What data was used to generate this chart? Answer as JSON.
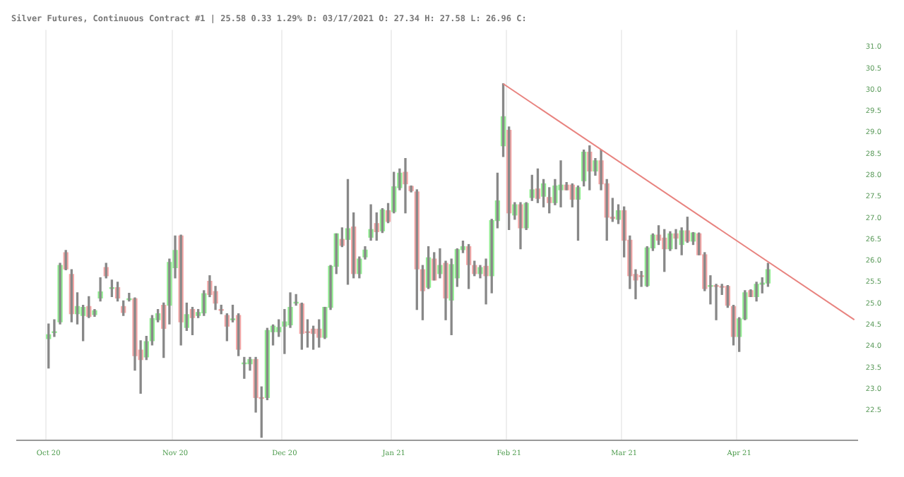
{
  "chart_data": {
    "type": "candlestick",
    "title": "Silver Futures, Continuous Contract #1 | 25.58 0.33 1.29% D: 03/17/2021 O: 27.34 H: 27.58 L: 26.96 C:",
    "categories": [
      null,
      null,
      null,
      null,
      null,
      "Oct 20",
      null,
      null,
      null,
      null,
      null,
      null,
      null,
      null,
      null,
      null,
      null,
      null,
      null,
      null,
      null,
      null,
      null,
      null,
      null,
      null,
      null,
      "Nov 20",
      null,
      null,
      null,
      null,
      null,
      null,
      null,
      null,
      null,
      null,
      null,
      null,
      null,
      null,
      null,
      null,
      null,
      null,
      "Dec 20",
      null,
      null,
      null,
      null,
      null,
      null,
      null,
      null,
      null,
      null,
      null,
      null,
      null,
      null,
      null,
      null,
      null,
      null,
      "Jan 21",
      null,
      null,
      null,
      null,
      null,
      null,
      null,
      null,
      null,
      null,
      null,
      null,
      null,
      null,
      null,
      null,
      null,
      null,
      null,
      "Feb 21",
      null,
      null,
      null,
      null,
      null,
      null,
      null,
      null,
      null,
      null,
      null,
      null,
      null,
      null,
      null,
      null,
      null,
      null,
      null,
      "Mar 21",
      null,
      null,
      null,
      null,
      null,
      null,
      null,
      null,
      null,
      null,
      null,
      null,
      null,
      null,
      null,
      null,
      null,
      null,
      null,
      "Apr 21",
      null,
      null,
      null,
      null,
      null,
      null,
      null,
      null,
      null,
      null,
      null,
      null,
      null,
      null,
      null,
      null,
      null,
      null,
      null,
      null
    ],
    "ohlc": [
      null,
      null,
      null,
      null,
      null,
      [
        24.18,
        24.52,
        23.49,
        24.27
      ],
      [
        24.32,
        24.62,
        24.23,
        24.34
      ],
      [
        24.57,
        25.94,
        24.52,
        25.89
      ],
      [
        26.19,
        26.24,
        25.79,
        25.81
      ],
      [
        25.68,
        25.79,
        24.57,
        24.76
      ],
      [
        24.76,
        25.25,
        24.52,
        24.93
      ],
      [
        24.72,
        24.96,
        24.13,
        24.91
      ],
      [
        24.93,
        25.16,
        24.67,
        24.7
      ],
      [
        24.74,
        24.86,
        24.7,
        24.83
      ],
      [
        25.13,
        25.6,
        25.06,
        25.27
      ],
      [
        25.84,
        25.94,
        25.6,
        25.65
      ],
      [
        25.35,
        25.55,
        25.16,
        25.37
      ],
      [
        25.37,
        25.5,
        25.06,
        25.13
      ],
      [
        24.93,
        25.06,
        24.72,
        24.79
      ],
      [
        25.09,
        25.24,
        25.06,
        25.11
      ],
      [
        25.11,
        25.13,
        23.44,
        23.78
      ],
      [
        23.91,
        24.13,
        22.9,
        23.69
      ],
      [
        23.75,
        24.23,
        23.69,
        24.11
      ],
      [
        24.13,
        24.72,
        24.03,
        24.65
      ],
      [
        24.62,
        24.86,
        24.57,
        24.76
      ],
      [
        24.96,
        25.01,
        23.74,
        24.42
      ],
      [
        24.96,
        26.04,
        24.52,
        25.96
      ],
      [
        25.84,
        26.58,
        25.6,
        26.24
      ],
      [
        26.58,
        26.6,
        24.03,
        24.57
      ],
      [
        24.44,
        25.01,
        24.37,
        24.74
      ],
      [
        24.86,
        24.91,
        24.27,
        24.67
      ],
      [
        24.72,
        24.86,
        24.67,
        24.79
      ],
      [
        24.78,
        25.3,
        24.72,
        25.23
      ],
      [
        25.52,
        25.65,
        25.16,
        25.21
      ],
      [
        25.28,
        25.4,
        24.86,
        25.01
      ],
      [
        24.86,
        24.96,
        24.76,
        24.84
      ],
      [
        24.72,
        24.76,
        24.13,
        24.47
      ],
      [
        24.62,
        24.96,
        24.57,
        24.64
      ],
      [
        24.72,
        24.76,
        23.78,
        23.93
      ],
      [
        23.59,
        23.74,
        23.25,
        23.61
      ],
      [
        23.59,
        23.74,
        23.44,
        23.69
      ],
      [
        23.69,
        23.74,
        22.46,
        22.8
      ],
      [
        22.8,
        23.05,
        21.87,
        22.78
      ],
      [
        22.8,
        24.42,
        22.75,
        24.37
      ],
      [
        24.34,
        24.5,
        24.03,
        24.47
      ],
      [
        24.34,
        24.62,
        24.23,
        24.44
      ],
      [
        24.47,
        24.86,
        23.83,
        24.57
      ],
      [
        24.5,
        25.25,
        24.44,
        24.91
      ],
      [
        25.01,
        25.21,
        24.96,
        25.03
      ],
      [
        24.99,
        25.01,
        23.93,
        24.3
      ],
      [
        24.34,
        24.62,
        23.98,
        24.32
      ],
      [
        24.4,
        24.47,
        23.93,
        24.3
      ],
      [
        24.4,
        24.62,
        23.98,
        24.21
      ],
      [
        24.21,
        24.91,
        24.18,
        24.91
      ],
      [
        24.91,
        25.89,
        24.86,
        25.87
      ],
      [
        25.87,
        26.63,
        25.7,
        26.63
      ],
      [
        26.5,
        26.77,
        26.33,
        26.36
      ],
      [
        26.5,
        27.9,
        25.45,
        26.75
      ],
      [
        26.79,
        27.12,
        25.6,
        25.7
      ],
      [
        25.7,
        26.09,
        25.6,
        26.04
      ],
      [
        26.09,
        26.33,
        26.04,
        26.25
      ],
      [
        26.55,
        27.31,
        26.48,
        26.73
      ],
      [
        26.87,
        27.12,
        26.48,
        26.68
      ],
      [
        26.7,
        27.22,
        26.66,
        27.19
      ],
      [
        27.17,
        27.34,
        26.89,
        26.92
      ],
      [
        27.15,
        28.07,
        27.12,
        27.73
      ],
      [
        27.71,
        28.15,
        27.66,
        28.05
      ],
      [
        28.07,
        28.39,
        27.12,
        27.8
      ],
      [
        27.74,
        27.75,
        27.61,
        27.64
      ],
      [
        27.61,
        27.66,
        24.86,
        25.81
      ],
      [
        25.79,
        25.89,
        24.62,
        25.3
      ],
      [
        25.38,
        26.33,
        25.35,
        26.07
      ],
      [
        26.04,
        26.19,
        25.55,
        25.55
      ],
      [
        25.7,
        26.28,
        25.6,
        25.89
      ],
      [
        25.94,
        25.99,
        24.62,
        25.13
      ],
      [
        25.08,
        26.04,
        24.27,
        25.91
      ],
      [
        25.6,
        26.28,
        25.4,
        26.26
      ],
      [
        26.26,
        26.46,
        26.19,
        26.33
      ],
      [
        26.33,
        26.38,
        25.35,
        25.91
      ],
      [
        25.89,
        25.99,
        25.65,
        25.7
      ],
      [
        25.7,
        25.89,
        25.6,
        25.84
      ],
      [
        25.87,
        26.04,
        24.99,
        25.65
      ],
      [
        25.65,
        26.97,
        25.25,
        26.94
      ],
      [
        26.94,
        28.05,
        26.77,
        27.4
      ],
      [
        28.69,
        30.14,
        28.44,
        29.37
      ],
      [
        29.05,
        29.13,
        26.73,
        27.12
      ],
      [
        27.07,
        27.36,
        26.97,
        27.31
      ],
      [
        27.31,
        27.36,
        26.28,
        26.77
      ],
      [
        26.77,
        27.36,
        26.73,
        27.34
      ],
      [
        27.48,
        28.0,
        27.41,
        27.66
      ],
      [
        27.68,
        28.15,
        27.36,
        27.46
      ],
      [
        27.51,
        27.9,
        27.26,
        27.8
      ],
      [
        27.48,
        27.71,
        27.12,
        27.36
      ],
      [
        27.36,
        27.9,
        27.31,
        27.75
      ],
      [
        27.66,
        28.34,
        27.26,
        27.77
      ],
      [
        27.77,
        27.83,
        27.66,
        27.66
      ],
      [
        27.77,
        27.8,
        27.26,
        27.44
      ],
      [
        27.44,
        27.75,
        26.48,
        27.71
      ],
      [
        27.87,
        28.59,
        27.75,
        28.54
      ],
      [
        28.54,
        28.69,
        27.66,
        28.1
      ],
      [
        28.1,
        28.39,
        28.0,
        28.34
      ],
      [
        28.34,
        28.59,
        27.66,
        27.8
      ],
      [
        27.8,
        27.9,
        26.48,
        27.02
      ],
      [
        27.02,
        27.46,
        26.92,
        26.99
      ],
      [
        26.97,
        27.31,
        26.87,
        27.17
      ],
      [
        27.17,
        27.26,
        26.09,
        26.48
      ],
      [
        26.48,
        26.58,
        25.35,
        25.65
      ],
      [
        25.68,
        25.79,
        25.11,
        25.55
      ],
      [
        25.65,
        25.75,
        25.4,
        25.63
      ],
      [
        25.42,
        26.33,
        25.4,
        26.3
      ],
      [
        26.3,
        26.63,
        26.24,
        26.6
      ],
      [
        26.6,
        26.82,
        26.38,
        26.48
      ],
      [
        26.53,
        26.73,
        25.75,
        26.28
      ],
      [
        26.28,
        26.68,
        26.24,
        26.63
      ],
      [
        26.63,
        26.73,
        26.28,
        26.53
      ],
      [
        26.38,
        26.77,
        26.14,
        26.7
      ],
      [
        26.7,
        27.02,
        26.43,
        26.46
      ],
      [
        26.46,
        26.66,
        26.38,
        26.65
      ],
      [
        26.63,
        26.65,
        26.14,
        26.14
      ],
      [
        26.14,
        26.19,
        25.3,
        25.35
      ],
      [
        25.4,
        25.65,
        24.99,
        25.42
      ],
      [
        25.42,
        25.45,
        24.62,
        25.4
      ],
      [
        25.4,
        25.45,
        25.21,
        25.38
      ],
      [
        25.4,
        25.42,
        24.91,
        24.96
      ],
      [
        24.93,
        24.96,
        24.03,
        24.23
      ],
      [
        24.23,
        24.67,
        23.88,
        24.64
      ],
      [
        24.64,
        25.3,
        24.62,
        25.25
      ],
      [
        25.3,
        25.32,
        25.16,
        25.16
      ],
      [
        25.16,
        25.5,
        25.06,
        25.45
      ],
      [
        25.45,
        25.6,
        25.25,
        25.48
      ],
      [
        25.48,
        25.94,
        25.4,
        25.79
      ],
      null,
      null,
      null,
      null,
      null,
      null,
      null,
      null,
      null,
      null,
      null,
      null,
      null,
      null,
      null
    ],
    "colors": [
      null,
      null,
      null,
      null,
      null,
      "#90ee90",
      "#90ee90",
      "#90ee90",
      "#f4a6a6",
      "#f4a6a6",
      "#90ee90",
      "#90ee90",
      "#f4a6a6",
      "#90ee90",
      "#90ee90",
      "#f4a6a6",
      "#90ee90",
      "#f4a6a6",
      "#f4a6a6",
      "#90ee90",
      "#f4a6a6",
      "#f4a6a6",
      "#90ee90",
      "#90ee90",
      "#90ee90",
      "#f4a6a6",
      "#90ee90",
      "#90ee90",
      "#f4a6a6",
      "#90ee90",
      "#f4a6a6",
      "#90ee90",
      "#90ee90",
      "#f4a6a6",
      "#f4a6a6",
      "#f4a6a6",
      "#f4a6a6",
      "#90ee90",
      "#f4a6a6",
      "#90ee90",
      "#90ee90",
      "#f4a6a6",
      "#f4a6a6",
      "#90ee90",
      "#90ee90",
      "#90ee90",
      "#90ee90",
      "#90ee90",
      "#90ee90",
      "#f4a6a6",
      "#f4a6a6",
      "#f4a6a6",
      "#f4a6a6",
      "#90ee90",
      "#90ee90",
      "#90ee90",
      "#f4a6a6",
      "#90ee90",
      "#f4a6a6",
      "#90ee90",
      "#90ee90",
      "#90ee90",
      "#f4a6a6",
      "#90ee90",
      "#f4a6a6",
      "#90ee90",
      "#90ee90",
      "#f4a6a6",
      "#f4a6a6",
      "#f4a6a6",
      "#f4a6a6",
      "#90ee90",
      "#f4a6a6",
      "#90ee90",
      "#f4a6a6",
      "#90ee90",
      "#90ee90",
      "#90ee90",
      "#f4a6a6",
      "#f4a6a6",
      "#90ee90",
      "#f4a6a6",
      "#90ee90",
      "#90ee90",
      "#90ee90",
      "#f4a6a6",
      "#90ee90",
      "#f4a6a6",
      "#90ee90",
      "#90ee90",
      "#f4a6a6",
      "#90ee90",
      "#f4a6a6",
      "#90ee90",
      "#90ee90",
      "#f4a6a6",
      "#f4a6a6",
      "#90ee90",
      "#90ee90",
      "#f4a6a6",
      "#90ee90",
      "#f4a6a6",
      "#f4a6a6",
      "#f4a6a6",
      "#90ee90",
      "#f4a6a6",
      "#f4a6a6",
      "#f4a6a6",
      "#f4a6a6",
      "#90ee90",
      "#90ee90",
      "#f4a6a6",
      "#f4a6a6",
      "#90ee90",
      "#f4a6a6",
      "#90ee90",
      "#f4a6a6",
      "#90ee90",
      "#f4a6a6",
      "#f4a6a6",
      "#90ee90",
      "#f4a6a6",
      "#f4a6a6",
      "#f4a6a6",
      "#f4a6a6",
      "#90ee90",
      "#90ee90",
      "#f4a6a6",
      "#90ee90",
      "#90ee90",
      "#90ee90",
      null,
      null,
      null,
      null,
      null,
      null,
      null,
      null,
      null,
      null,
      null,
      null,
      null,
      null,
      null
    ],
    "series": [
      {
        "type": "line",
        "color": "#e8837f",
        "values": [
          null,
          null,
          null,
          null,
          null,
          null,
          null,
          null,
          null,
          null,
          null,
          null,
          null,
          null,
          null,
          null,
          null,
          null,
          null,
          null,
          null,
          null,
          null,
          null,
          null,
          null,
          null,
          null,
          null,
          null,
          null,
          null,
          null,
          null,
          null,
          null,
          null,
          null,
          null,
          null,
          null,
          null,
          null,
          null,
          null,
          null,
          null,
          null,
          null,
          null,
          null,
          null,
          null,
          null,
          null,
          null,
          null,
          null,
          null,
          null,
          null,
          null,
          null,
          null,
          null,
          null,
          null,
          null,
          null,
          null,
          null,
          null,
          null,
          null,
          null,
          null,
          null,
          null,
          null,
          null,
          null,
          null,
          null,
          null,
          30.14,
          null,
          null,
          null,
          null,
          null,
          null,
          null,
          null,
          null,
          null,
          null,
          null,
          null,
          null,
          null,
          null,
          null,
          null,
          null,
          null,
          null,
          null,
          null,
          null,
          null,
          null,
          null,
          null,
          null,
          null,
          null,
          null,
          null,
          null,
          null,
          null,
          null,
          null,
          null,
          null,
          null,
          null,
          null,
          null,
          null,
          null,
          null,
          null,
          null,
          null,
          null,
          null,
          null,
          null,
          null,
          null,
          null,
          null,
          null,
          null,
          24.62
        ]
      }
    ],
    "ylim": [
      21.8,
      31.4
    ],
    "yticks": [
      {
        "value": 31,
        "label": "31.0"
      },
      30.5,
      {
        "value": 30,
        "label": "30.0"
      },
      29.5,
      {
        "value": 29,
        "label": "29.0"
      },
      28.5,
      {
        "value": 28,
        "label": "28.0"
      },
      27.5,
      {
        "value": 27,
        "label": "27.0"
      },
      26.5,
      {
        "value": 26,
        "label": "26.0"
      },
      25.5,
      {
        "value": 25,
        "label": "25.0"
      },
      24.5,
      {
        "value": 24,
        "label": "24.0"
      },
      23.5,
      {
        "value": 23,
        "label": "23.0"
      },
      22.5
    ],
    "grid": "x",
    "legend": false,
    "marker": "none",
    "line_style": "solid"
  }
}
